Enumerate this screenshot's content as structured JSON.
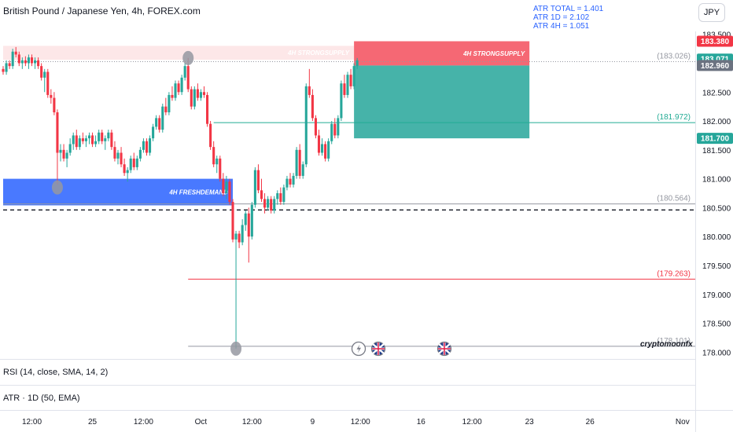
{
  "header": {
    "symbol_title": "British Pound / Japanese Yen, 4h, FOREX.com",
    "currency_button": "JPY"
  },
  "atr_info": [
    "ATR TOTAL = 1.401",
    "ATR 1D = 2.102",
    "ATR 4H = 1.051"
  ],
  "indicators": {
    "rsi_label": "RSI (14, close, SMA, 14, 2)",
    "atr_label": "ATR · 1D (50, EMA)"
  },
  "watermark": "cryptomoonfx",
  "colors": {
    "up": "#26a69a",
    "down": "#f23645",
    "supply_zone": "#f23645",
    "demand_zone": "#2962ff",
    "target_zone": "#26a69a",
    "level_teal": "#22ab94",
    "level_red": "#f23645",
    "atr_text": "#2962ff"
  },
  "chart_data": {
    "type": "candlestick",
    "y_axis": {
      "ylim": [
        177.95,
        183.55
      ],
      "ticks": [
        "183.500",
        "183.000",
        "182.500",
        "182.000",
        "181.500",
        "181.000",
        "180.500",
        "180.000",
        "179.500",
        "179.000",
        "178.500",
        "178.000"
      ],
      "tick_values": [
        183.5,
        183.0,
        182.5,
        182.0,
        181.5,
        181.0,
        180.5,
        180.0,
        179.5,
        179.0,
        178.5,
        178.0
      ]
    },
    "x_axis": {
      "labels": [
        "12:00",
        "25",
        "12:00",
        "Oct",
        "12:00",
        "9",
        "12:00",
        "16",
        "12:00",
        "23",
        "26",
        "Nov"
      ],
      "label_candle_index": [
        9,
        28,
        44,
        62,
        78,
        97,
        112,
        131,
        147,
        165,
        184,
        213
      ]
    },
    "price_badges": [
      {
        "label": "183.380",
        "value": 183.38,
        "color": "#f23645"
      },
      {
        "label": "183.071",
        "value": 183.071,
        "color": "#26a69a"
      },
      {
        "label": "182.960",
        "value": 182.96,
        "color": "#6b7280"
      },
      {
        "label": "181.700",
        "value": 181.7,
        "color": "#26a69a"
      }
    ],
    "levels": [
      {
        "label": "(183.026)",
        "value": 183.026,
        "color": "#9598a1",
        "style": "dotted",
        "from_index": 0
      },
      {
        "label": "(181.972)",
        "value": 181.972,
        "color": "#22ab94",
        "style": "solid",
        "from_index": 66
      },
      {
        "label": "(180.564)",
        "value": 180.564,
        "color": "#9598a1",
        "style": "solid",
        "from_index": 0
      },
      {
        "label": "(179.263)",
        "value": 179.263,
        "color": "#f23645",
        "style": "solid",
        "from_index": 58
      },
      {
        "label": "(178.101)",
        "value": 178.101,
        "color": "#9598a1",
        "style": "solid",
        "from_index": 58
      },
      {
        "label": "",
        "value": 180.46,
        "color": "#131722",
        "style": "dashed",
        "from_index": 0
      }
    ],
    "zones": [
      {
        "label": "4H STRONGSUPPLY",
        "from_value": 183.06,
        "to_value": 183.3,
        "from_index": 0,
        "to_index": 110,
        "color": "#f23645",
        "opacity": 0.12
      },
      {
        "label": "4H STRONGSUPPLY",
        "from_value": 182.96,
        "to_value": 183.38,
        "from_index": 110,
        "to_index": 165,
        "color": "#f23645",
        "opacity": 0.75
      },
      {
        "label": "4H FRESHDEMAND",
        "from_value": 180.54,
        "to_value": 181.0,
        "from_index": 0,
        "to_index": 72,
        "color": "#2962ff",
        "opacity": 0.85
      },
      {
        "label": "",
        "from_value": 181.7,
        "to_value": 182.96,
        "from_index": 110,
        "to_index": 165,
        "color": "#26a69a",
        "opacity": 0.85
      }
    ],
    "markers": [
      {
        "index": 17,
        "value": 180.85
      },
      {
        "index": 58,
        "value": 183.09
      },
      {
        "index": 73,
        "value": 178.06
      }
    ],
    "candles": [
      [
        182.9,
        182.95,
        182.8,
        182.85
      ],
      [
        182.85,
        183.05,
        182.8,
        183.0
      ],
      [
        183.0,
        183.05,
        182.9,
        182.95
      ],
      [
        182.95,
        183.25,
        182.9,
        183.2
      ],
      [
        183.2,
        183.28,
        183.1,
        183.15
      ],
      [
        183.15,
        183.2,
        182.95,
        183.0
      ],
      [
        183.0,
        183.1,
        182.9,
        183.05
      ],
      [
        183.05,
        183.12,
        182.95,
        183.0
      ],
      [
        183.0,
        183.15,
        182.9,
        183.1
      ],
      [
        183.1,
        183.15,
        182.95,
        183.0
      ],
      [
        183.0,
        183.1,
        182.9,
        183.05
      ],
      [
        183.05,
        183.1,
        182.9,
        182.95
      ],
      [
        182.95,
        183.0,
        182.7,
        182.75
      ],
      [
        182.75,
        182.9,
        182.5,
        182.85
      ],
      [
        182.85,
        182.9,
        182.4,
        182.45
      ],
      [
        182.45,
        182.55,
        182.3,
        182.4
      ],
      [
        182.4,
        182.5,
        182.1,
        182.15
      ],
      [
        182.15,
        182.2,
        180.9,
        181.45
      ],
      [
        181.45,
        181.6,
        181.3,
        181.5
      ],
      [
        181.5,
        181.6,
        181.3,
        181.35
      ],
      [
        181.35,
        181.5,
        181.2,
        181.45
      ],
      [
        181.45,
        181.7,
        181.4,
        181.6
      ],
      [
        181.6,
        181.8,
        181.5,
        181.75
      ],
      [
        181.75,
        181.85,
        181.5,
        181.55
      ],
      [
        181.55,
        181.75,
        181.5,
        181.7
      ],
      [
        181.7,
        181.8,
        181.6,
        181.65
      ],
      [
        181.65,
        181.75,
        181.55,
        181.7
      ],
      [
        181.7,
        181.8,
        181.6,
        181.75
      ],
      [
        181.75,
        181.8,
        181.55,
        181.6
      ],
      [
        181.6,
        181.75,
        181.55,
        181.65
      ],
      [
        181.65,
        181.85,
        181.6,
        181.8
      ],
      [
        181.8,
        181.85,
        181.6,
        181.65
      ],
      [
        181.65,
        181.75,
        181.5,
        181.7
      ],
      [
        181.7,
        181.85,
        181.65,
        181.8
      ],
      [
        181.8,
        181.85,
        181.5,
        181.55
      ],
      [
        181.55,
        181.65,
        181.3,
        181.35
      ],
      [
        181.35,
        181.5,
        181.25,
        181.45
      ],
      [
        181.45,
        181.55,
        181.2,
        181.25
      ],
      [
        181.25,
        181.35,
        181.05,
        181.1
      ],
      [
        181.1,
        181.2,
        180.95,
        181.15
      ],
      [
        181.15,
        181.4,
        181.1,
        181.35
      ],
      [
        181.35,
        181.45,
        181.15,
        181.2
      ],
      [
        181.2,
        181.4,
        181.15,
        181.35
      ],
      [
        181.35,
        181.55,
        181.3,
        181.5
      ],
      [
        181.5,
        181.7,
        181.45,
        181.65
      ],
      [
        181.65,
        181.7,
        181.4,
        181.45
      ],
      [
        181.45,
        181.75,
        181.4,
        181.7
      ],
      [
        181.7,
        181.95,
        181.65,
        181.9
      ],
      [
        181.9,
        182.1,
        181.85,
        182.05
      ],
      [
        182.05,
        182.1,
        181.8,
        181.85
      ],
      [
        181.85,
        182.3,
        181.8,
        182.25
      ],
      [
        182.25,
        182.4,
        182.1,
        182.15
      ],
      [
        182.15,
        182.5,
        182.1,
        182.45
      ],
      [
        182.45,
        182.6,
        182.35,
        182.4
      ],
      [
        182.4,
        182.7,
        182.35,
        182.65
      ],
      [
        182.65,
        182.7,
        182.45,
        182.5
      ],
      [
        182.5,
        182.8,
        182.45,
        182.75
      ],
      [
        182.75,
        183.0,
        182.7,
        182.95
      ],
      [
        182.95,
        183.09,
        182.5,
        182.55
      ],
      [
        182.55,
        182.6,
        182.2,
        182.25
      ],
      [
        182.25,
        182.6,
        182.2,
        182.55
      ],
      [
        182.55,
        182.65,
        182.35,
        182.4
      ],
      [
        182.4,
        182.55,
        182.35,
        182.5
      ],
      [
        182.5,
        182.6,
        182.4,
        182.45
      ],
      [
        182.45,
        182.5,
        181.9,
        181.95
      ],
      [
        181.95,
        182.0,
        181.5,
        181.55
      ],
      [
        181.55,
        181.65,
        181.2,
        181.25
      ],
      [
        181.25,
        181.4,
        181.1,
        181.35
      ],
      [
        181.35,
        181.4,
        180.95,
        181.0
      ],
      [
        181.0,
        181.1,
        180.7,
        180.75
      ],
      [
        180.75,
        181.05,
        180.65,
        180.95
      ],
      [
        180.95,
        181.0,
        180.55,
        180.6
      ],
      [
        180.6,
        180.65,
        179.9,
        179.95
      ],
      [
        179.95,
        180.1,
        178.06,
        180.05
      ],
      [
        180.05,
        180.1,
        179.8,
        179.9
      ],
      [
        179.9,
        180.3,
        179.85,
        180.2
      ],
      [
        180.2,
        180.45,
        180.1,
        180.4
      ],
      [
        180.4,
        180.5,
        179.55,
        180.0
      ],
      [
        180.0,
        180.6,
        179.95,
        180.55
      ],
      [
        180.55,
        181.2,
        180.5,
        181.15
      ],
      [
        181.15,
        181.25,
        180.75,
        180.8
      ],
      [
        180.8,
        181.0,
        180.6,
        180.65
      ],
      [
        180.65,
        180.75,
        180.4,
        180.5
      ],
      [
        180.5,
        180.7,
        180.45,
        180.65
      ],
      [
        180.65,
        180.7,
        180.4,
        180.45
      ],
      [
        180.45,
        180.7,
        180.4,
        180.65
      ],
      [
        180.65,
        180.8,
        180.55,
        180.75
      ],
      [
        180.75,
        180.85,
        180.55,
        180.6
      ],
      [
        180.6,
        180.9,
        180.55,
        180.85
      ],
      [
        180.85,
        181.05,
        180.8,
        181.0
      ],
      [
        181.0,
        181.1,
        180.85,
        180.9
      ],
      [
        180.9,
        181.1,
        180.85,
        181.05
      ],
      [
        181.05,
        181.55,
        181.0,
        181.5
      ],
      [
        181.5,
        181.6,
        181.0,
        181.05
      ],
      [
        181.05,
        181.3,
        181.0,
        181.25
      ],
      [
        181.25,
        182.65,
        181.2,
        182.6
      ],
      [
        182.6,
        182.9,
        182.4,
        182.45
      ],
      [
        182.45,
        182.55,
        182.0,
        182.05
      ],
      [
        182.05,
        182.1,
        181.7,
        181.75
      ],
      [
        181.75,
        181.85,
        181.4,
        181.45
      ],
      [
        181.45,
        181.7,
        181.4,
        181.6
      ],
      [
        181.6,
        181.65,
        181.3,
        181.35
      ],
      [
        181.35,
        181.7,
        181.3,
        181.65
      ],
      [
        181.65,
        182.0,
        181.6,
        181.95
      ],
      [
        181.95,
        182.05,
        181.7,
        181.75
      ],
      [
        181.75,
        182.1,
        181.7,
        182.05
      ],
      [
        182.05,
        182.7,
        182.0,
        182.65
      ],
      [
        182.65,
        182.8,
        182.4,
        182.45
      ],
      [
        182.45,
        182.85,
        182.4,
        182.8
      ],
      [
        182.8,
        182.9,
        182.55,
        182.6
      ],
      [
        182.6,
        183.0,
        182.55,
        182.95
      ],
      [
        182.95,
        183.09,
        182.9,
        183.05
      ]
    ],
    "x_index_range": [
      0,
      216
    ],
    "grid": false,
    "legend": "none"
  }
}
